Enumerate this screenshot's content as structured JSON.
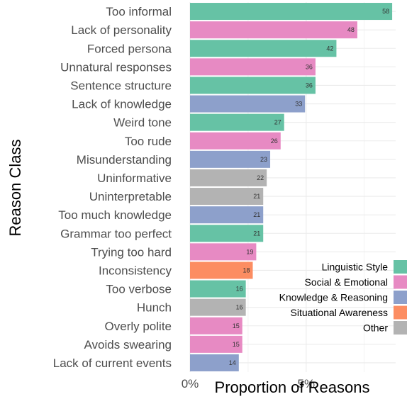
{
  "chart_data": {
    "type": "bar",
    "orientation": "horizontal",
    "xlabel": "Proportion of Reasons",
    "ylabel": "Reason Class",
    "xlim": [
      0,
      0.0885
    ],
    "xticks": [
      {
        "value": 0,
        "label": "0%"
      },
      {
        "value": 0.05,
        "label": "5%"
      }
    ],
    "grid": true,
    "legend_position": "bottom-right",
    "groups": [
      {
        "name": "Linguistic Style",
        "color": "#66c2a5"
      },
      {
        "name": "Social & Emotional",
        "color": "#e78ac3"
      },
      {
        "name": "Knowledge & Reasoning",
        "color": "#8da0cb"
      },
      {
        "name": "Situational Awareness",
        "color": "#fc8d62"
      },
      {
        "name": "Other",
        "color": "#b3b3b3"
      }
    ],
    "bars": [
      {
        "category": "Too informal",
        "value": 0.087,
        "count": 58,
        "group": "Linguistic Style"
      },
      {
        "category": "Lack of personality",
        "value": 0.072,
        "count": 48,
        "group": "Social & Emotional"
      },
      {
        "category": "Forced persona",
        "value": 0.063,
        "count": 42,
        "group": "Linguistic Style"
      },
      {
        "category": "Unnatural responses",
        "value": 0.054,
        "count": 36,
        "group": "Social & Emotional"
      },
      {
        "category": "Sentence structure",
        "value": 0.054,
        "count": 36,
        "group": "Linguistic Style"
      },
      {
        "category": "Lack of knowledge",
        "value": 0.0495,
        "count": 33,
        "group": "Knowledge & Reasoning"
      },
      {
        "category": "Weird tone",
        "value": 0.0405,
        "count": 27,
        "group": "Linguistic Style"
      },
      {
        "category": "Too rude",
        "value": 0.039,
        "count": 26,
        "group": "Social & Emotional"
      },
      {
        "category": "Misunderstanding",
        "value": 0.0345,
        "count": 23,
        "group": "Knowledge & Reasoning"
      },
      {
        "category": "Uninformative",
        "value": 0.033,
        "count": 22,
        "group": "Other"
      },
      {
        "category": "Uninterpretable",
        "value": 0.0315,
        "count": 21,
        "group": "Other"
      },
      {
        "category": "Too much knowledge",
        "value": 0.0315,
        "count": 21,
        "group": "Knowledge & Reasoning"
      },
      {
        "category": "Grammar too perfect",
        "value": 0.0315,
        "count": 21,
        "group": "Linguistic Style"
      },
      {
        "category": "Trying too hard",
        "value": 0.0285,
        "count": 19,
        "group": "Social & Emotional"
      },
      {
        "category": "Inconsistency",
        "value": 0.027,
        "count": 18,
        "group": "Situational Awareness"
      },
      {
        "category": "Too verbose",
        "value": 0.024,
        "count": 16,
        "group": "Linguistic Style"
      },
      {
        "category": "Hunch",
        "value": 0.024,
        "count": 16,
        "group": "Other"
      },
      {
        "category": "Overly polite",
        "value": 0.0225,
        "count": 15,
        "group": "Social & Emotional"
      },
      {
        "category": "Avoids swearing",
        "value": 0.0225,
        "count": 15,
        "group": "Social & Emotional"
      },
      {
        "category": "Lack of current events",
        "value": 0.021,
        "count": 14,
        "group": "Knowledge & Reasoning"
      }
    ]
  }
}
